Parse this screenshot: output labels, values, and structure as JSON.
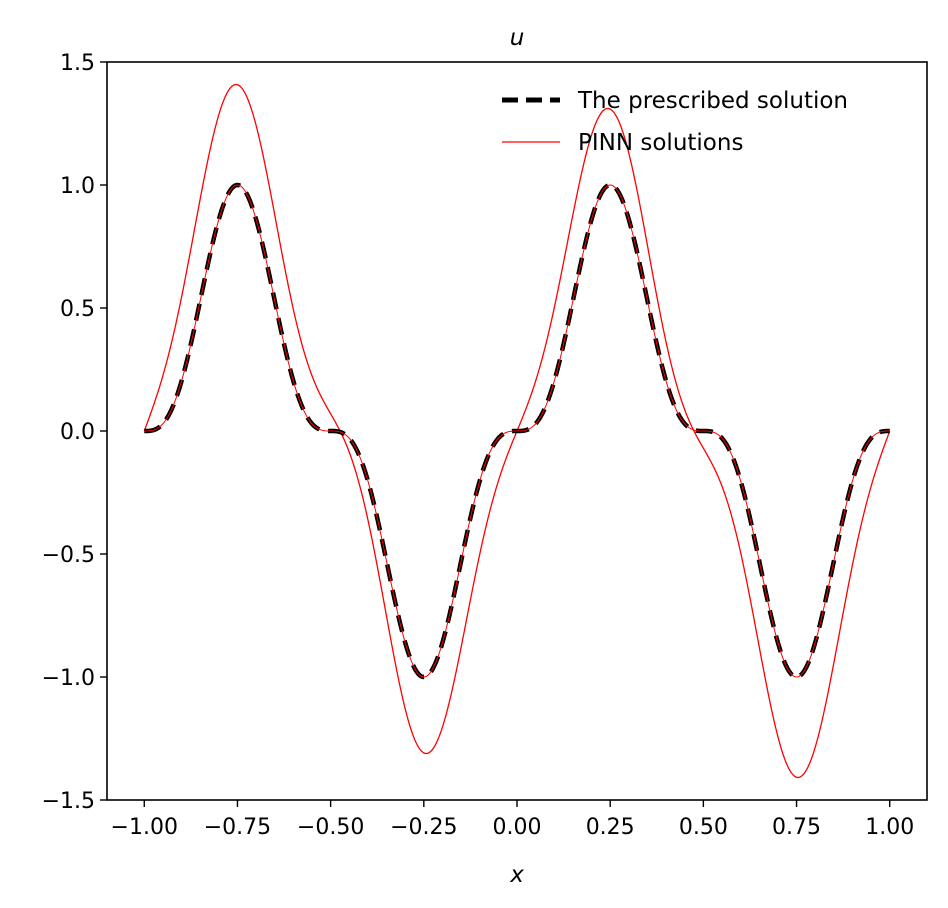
{
  "chart_data": {
    "type": "line",
    "title": "u",
    "xlabel": "x",
    "ylabel": "",
    "xlim": [
      -1.1,
      1.1
    ],
    "ylim": [
      -1.5,
      1.5
    ],
    "xticks": [
      -1.0,
      -0.75,
      -0.5,
      -0.25,
      0.0,
      0.25,
      0.5,
      0.75,
      1.0
    ],
    "xtick_labels": [
      "−1.00",
      "−0.75",
      "−0.50",
      "−0.25",
      "0.00",
      "0.25",
      "0.50",
      "0.75",
      "1.00"
    ],
    "yticks": [
      -1.5,
      -1.0,
      -0.5,
      0.0,
      0.5,
      1.0,
      1.5
    ],
    "ytick_labels": [
      "−1.5",
      "−1.0",
      "−0.5",
      "0.0",
      "0.5",
      "1.0",
      "1.5"
    ],
    "grid": false,
    "legend_position": "top-right",
    "x_range": [
      -1.0,
      1.0
    ],
    "series": [
      {
        "name": "The prescribed solution",
        "color": "#000000",
        "style": "dashed",
        "formula": "sin(2*pi*x)^3",
        "x": [
          -1.0,
          -0.75,
          -0.5,
          -0.25,
          0.0,
          0.25,
          0.5,
          0.75,
          1.0
        ],
        "y": [
          0.0,
          1.0,
          0.0,
          -1.0,
          0.0,
          1.0,
          0.0,
          -1.0,
          0.0
        ]
      },
      {
        "name": "PINN solutions",
        "color": "#ff0000",
        "style": "solid",
        "x": [
          -1.0,
          -0.78,
          -0.5,
          -0.26,
          0.0,
          0.26,
          0.5,
          0.78,
          1.0
        ],
        "y": [
          0.0,
          1.27,
          0.0,
          -1.31,
          0.0,
          1.31,
          0.0,
          -1.27,
          0.0
        ]
      }
    ]
  }
}
